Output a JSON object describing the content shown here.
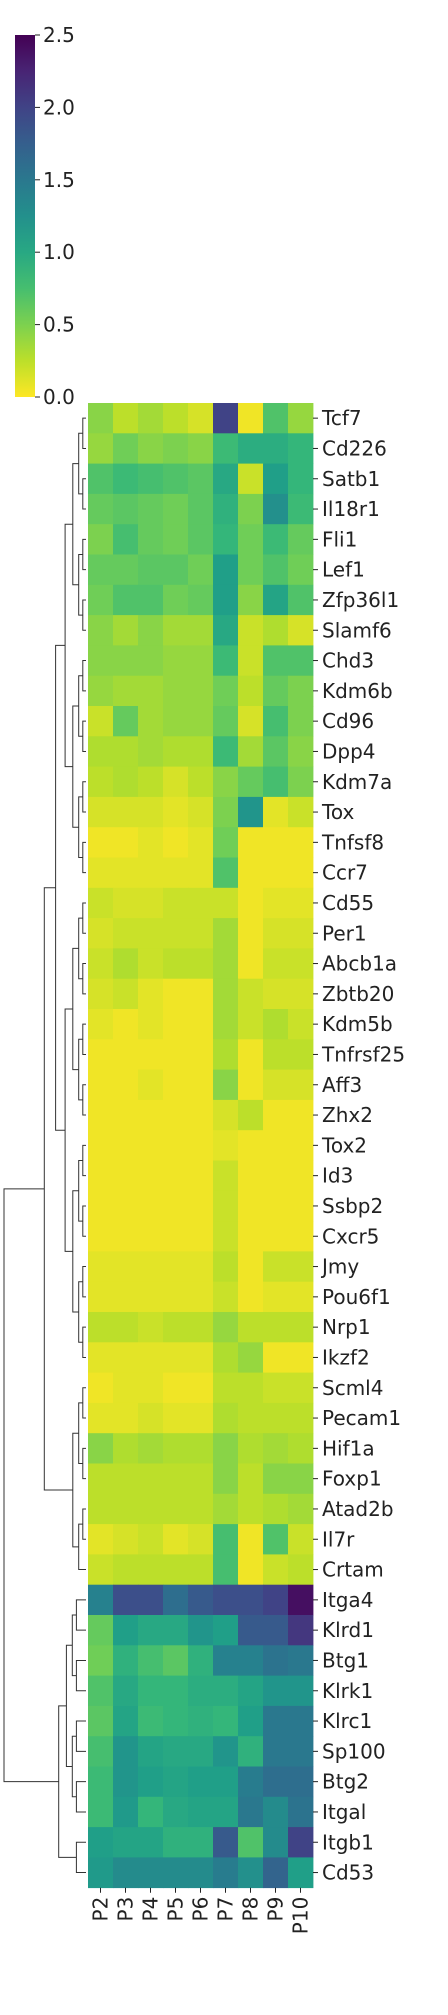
{
  "chart_data": {
    "type": "heatmap",
    "title": "",
    "xlabel": "",
    "ylabel": "",
    "columns": [
      "P2",
      "P3",
      "P4",
      "P5",
      "P6",
      "P7",
      "P8",
      "P9",
      "P10"
    ],
    "rows": [
      "Tcf7",
      "Cd226",
      "Satb1",
      "Il18r1",
      "Fli1",
      "Lef1",
      "Zfp36l1",
      "Slamf6",
      "Chd3",
      "Kdm6b",
      "Cd96",
      "Dpp4",
      "Kdm7a",
      "Tox",
      "Tnfsf8",
      "Ccr7",
      "Cd55",
      "Per1",
      "Abcb1a",
      "Zbtb20",
      "Kdm5b",
      "Tnfrsf25",
      "Aff3",
      "Zhx2",
      "Tox2",
      "Id3",
      "Ssbp2",
      "Cxcr5",
      "Jmy",
      "Pou6f1",
      "Nrp1",
      "Ikzf2",
      "Scml4",
      "Pecam1",
      "Hif1a",
      "Foxp1",
      "Atad2b",
      "Il7r",
      "Crtam",
      "Itga4",
      "Klrd1",
      "Btg1",
      "Klrk1",
      "Klrc1",
      "Sp100",
      "Btg2",
      "Itgal",
      "Itgb1",
      "Cd53"
    ],
    "values": [
      [
        0.45,
        0.25,
        0.35,
        0.25,
        0.15,
        2.0,
        0.05,
        0.7,
        0.4
      ],
      [
        0.4,
        0.55,
        0.45,
        0.5,
        0.45,
        0.8,
        0.95,
        0.95,
        0.85
      ],
      [
        0.7,
        0.8,
        0.75,
        0.7,
        0.65,
        1.0,
        0.2,
        1.1,
        0.85
      ],
      [
        0.6,
        0.65,
        0.6,
        0.55,
        0.65,
        0.9,
        0.5,
        1.25,
        0.8
      ],
      [
        0.5,
        0.75,
        0.6,
        0.55,
        0.65,
        0.85,
        0.55,
        0.8,
        0.6
      ],
      [
        0.6,
        0.6,
        0.65,
        0.65,
        0.55,
        1.1,
        0.55,
        0.7,
        0.55
      ],
      [
        0.55,
        0.7,
        0.7,
        0.55,
        0.6,
        1.1,
        0.45,
        1.05,
        0.7
      ],
      [
        0.45,
        0.35,
        0.45,
        0.35,
        0.35,
        1.0,
        0.2,
        0.3,
        0.15
      ],
      [
        0.45,
        0.45,
        0.45,
        0.4,
        0.4,
        0.8,
        0.2,
        0.7,
        0.7
      ],
      [
        0.4,
        0.35,
        0.35,
        0.4,
        0.4,
        0.55,
        0.25,
        0.6,
        0.5
      ],
      [
        0.2,
        0.6,
        0.35,
        0.4,
        0.4,
        0.6,
        0.15,
        0.75,
        0.5
      ],
      [
        0.3,
        0.3,
        0.35,
        0.3,
        0.3,
        0.8,
        0.35,
        0.65,
        0.45
      ],
      [
        0.25,
        0.3,
        0.25,
        0.15,
        0.25,
        0.45,
        0.6,
        0.75,
        0.5
      ],
      [
        0.15,
        0.15,
        0.15,
        0.1,
        0.15,
        0.5,
        1.2,
        0.1,
        0.2
      ],
      [
        0.05,
        0.05,
        0.1,
        0.05,
        0.1,
        0.55,
        0.05,
        0.05,
        0.05
      ],
      [
        0.1,
        0.1,
        0.1,
        0.1,
        0.1,
        0.7,
        0.05,
        0.05,
        0.05
      ],
      [
        0.2,
        0.15,
        0.15,
        0.2,
        0.2,
        0.2,
        0.05,
        0.1,
        0.1
      ],
      [
        0.15,
        0.2,
        0.2,
        0.2,
        0.2,
        0.35,
        0.05,
        0.15,
        0.15
      ],
      [
        0.2,
        0.3,
        0.2,
        0.25,
        0.25,
        0.35,
        0.05,
        0.2,
        0.2
      ],
      [
        0.15,
        0.2,
        0.1,
        0.05,
        0.05,
        0.35,
        0.2,
        0.15,
        0.15
      ],
      [
        0.1,
        0.05,
        0.1,
        0.05,
        0.05,
        0.35,
        0.2,
        0.3,
        0.2
      ],
      [
        0.05,
        0.05,
        0.05,
        0.05,
        0.05,
        0.3,
        0.05,
        0.25,
        0.25
      ],
      [
        0.05,
        0.05,
        0.1,
        0.05,
        0.05,
        0.45,
        0.05,
        0.15,
        0.15
      ],
      [
        0.05,
        0.05,
        0.05,
        0.05,
        0.05,
        0.15,
        0.25,
        0.05,
        0.05
      ],
      [
        0.05,
        0.05,
        0.05,
        0.05,
        0.05,
        0.1,
        0.05,
        0.05,
        0.05
      ],
      [
        0.05,
        0.05,
        0.05,
        0.05,
        0.05,
        0.2,
        0.05,
        0.05,
        0.05
      ],
      [
        0.05,
        0.05,
        0.05,
        0.05,
        0.05,
        0.2,
        0.05,
        0.05,
        0.05
      ],
      [
        0.05,
        0.05,
        0.05,
        0.05,
        0.05,
        0.2,
        0.05,
        0.05,
        0.05
      ],
      [
        0.1,
        0.1,
        0.1,
        0.1,
        0.1,
        0.25,
        0.05,
        0.2,
        0.2
      ],
      [
        0.1,
        0.1,
        0.1,
        0.1,
        0.1,
        0.2,
        0.05,
        0.1,
        0.1
      ],
      [
        0.25,
        0.25,
        0.2,
        0.25,
        0.25,
        0.4,
        0.25,
        0.25,
        0.25
      ],
      [
        0.1,
        0.1,
        0.1,
        0.1,
        0.1,
        0.3,
        0.4,
        0.05,
        0.05
      ],
      [
        0.05,
        0.1,
        0.1,
        0.05,
        0.05,
        0.25,
        0.25,
        0.2,
        0.2
      ],
      [
        0.1,
        0.1,
        0.15,
        0.1,
        0.1,
        0.3,
        0.25,
        0.25,
        0.25
      ],
      [
        0.45,
        0.3,
        0.35,
        0.3,
        0.3,
        0.45,
        0.3,
        0.35,
        0.3
      ],
      [
        0.25,
        0.25,
        0.25,
        0.25,
        0.25,
        0.45,
        0.25,
        0.45,
        0.45
      ],
      [
        0.25,
        0.25,
        0.25,
        0.25,
        0.25,
        0.35,
        0.25,
        0.3,
        0.35
      ],
      [
        0.1,
        0.15,
        0.2,
        0.1,
        0.15,
        0.75,
        0.05,
        0.7,
        0.2
      ],
      [
        0.2,
        0.25,
        0.25,
        0.25,
        0.25,
        0.75,
        0.05,
        0.2,
        0.25
      ],
      [
        1.4,
        1.9,
        1.9,
        1.6,
        1.8,
        1.9,
        1.9,
        2.0,
        2.4
      ],
      [
        0.6,
        1.1,
        1.0,
        1.0,
        1.2,
        1.1,
        1.8,
        1.8,
        2.1
      ],
      [
        0.55,
        0.9,
        0.75,
        0.65,
        0.9,
        1.4,
        1.4,
        1.55,
        1.5
      ],
      [
        0.7,
        1.0,
        0.85,
        0.85,
        0.95,
        0.95,
        1.05,
        1.2,
        1.2
      ],
      [
        0.65,
        1.05,
        0.8,
        0.85,
        0.9,
        0.85,
        1.1,
        1.5,
        1.5
      ],
      [
        0.75,
        1.2,
        1.05,
        1.0,
        1.0,
        1.2,
        0.9,
        1.5,
        1.5
      ],
      [
        0.8,
        1.2,
        1.1,
        1.05,
        1.1,
        1.1,
        1.45,
        1.6,
        1.6
      ],
      [
        0.8,
        1.15,
        0.85,
        1.0,
        1.05,
        1.05,
        1.5,
        1.3,
        1.55
      ],
      [
        1.1,
        1.05,
        1.05,
        0.9,
        0.9,
        1.8,
        0.7,
        1.3,
        2.0
      ],
      [
        1.15,
        1.3,
        1.3,
        1.3,
        1.3,
        1.45,
        1.25,
        1.7,
        1.1
      ]
    ],
    "vmin": 0.0,
    "vmax": 2.5,
    "colormap": "viridis_r",
    "colorbar_ticks": [
      "0.0",
      "0.5",
      "1.0",
      "1.5",
      "2.0",
      "2.5"
    ],
    "row_dendrogram": true,
    "colors": {
      "text": "#222222",
      "dendrogram": "#333333"
    }
  }
}
